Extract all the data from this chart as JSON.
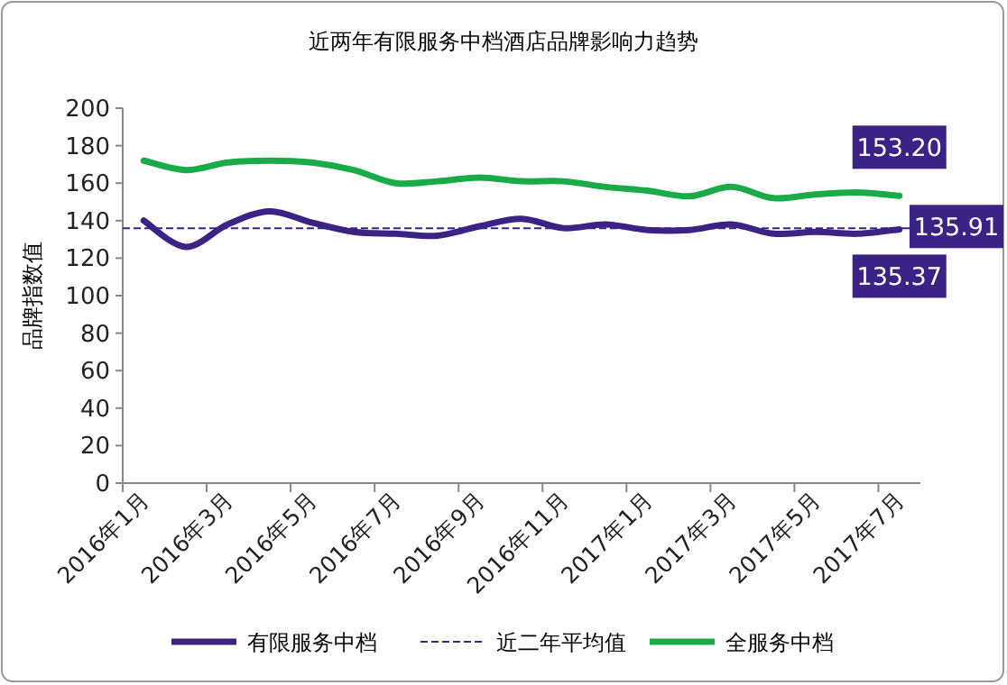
{
  "chart_data": {
    "type": "line",
    "title": "近两年有限服务中档酒店品牌影响力趋势",
    "ylabel": "品牌指数值",
    "categories": [
      "2016年1月",
      null,
      "2016年3月",
      null,
      "2016年5月",
      null,
      "2016年7月",
      null,
      "2016年9月",
      null,
      "2016年11月",
      null,
      "2017年1月",
      null,
      "2017年3月",
      null,
      "2017年5月",
      null,
      "2017年7月"
    ],
    "series": [
      {
        "name": "有限服务中档",
        "color": "#3b2385",
        "values": [
          140,
          126,
          138,
          145,
          139,
          134,
          133,
          132,
          137,
          141,
          136,
          138,
          135,
          135,
          138,
          133,
          134,
          133,
          135.37
        ],
        "value_labels": [
          null,
          null,
          null,
          null,
          null,
          null,
          null,
          null,
          null,
          null,
          null,
          null,
          null,
          null,
          null,
          null,
          null,
          null,
          "135.37"
        ]
      },
      {
        "name": "全服务中档",
        "color": "#1aab48",
        "values": [
          172,
          167,
          171,
          172,
          171,
          167,
          160,
          161,
          163,
          161,
          161,
          158,
          156,
          153,
          158,
          152,
          154,
          155,
          153.2
        ],
        "value_labels": [
          null,
          null,
          null,
          null,
          null,
          null,
          null,
          null,
          null,
          null,
          null,
          null,
          null,
          null,
          null,
          null,
          null,
          null,
          "153.20"
        ]
      }
    ],
    "ref_lines": [
      {
        "axis": "y",
        "value": 135.91,
        "label": "近二年平均值",
        "color": "#3b2385",
        "line_style": "dashed"
      }
    ],
    "annotations": [
      "135.91"
    ],
    "ylim": [
      0,
      200
    ],
    "yticks": [
      0,
      20,
      40,
      60,
      80,
      100,
      120,
      140,
      160,
      180,
      200
    ],
    "grid": false,
    "legend": "bottom",
    "marker": "none",
    "line_style": "solid"
  }
}
